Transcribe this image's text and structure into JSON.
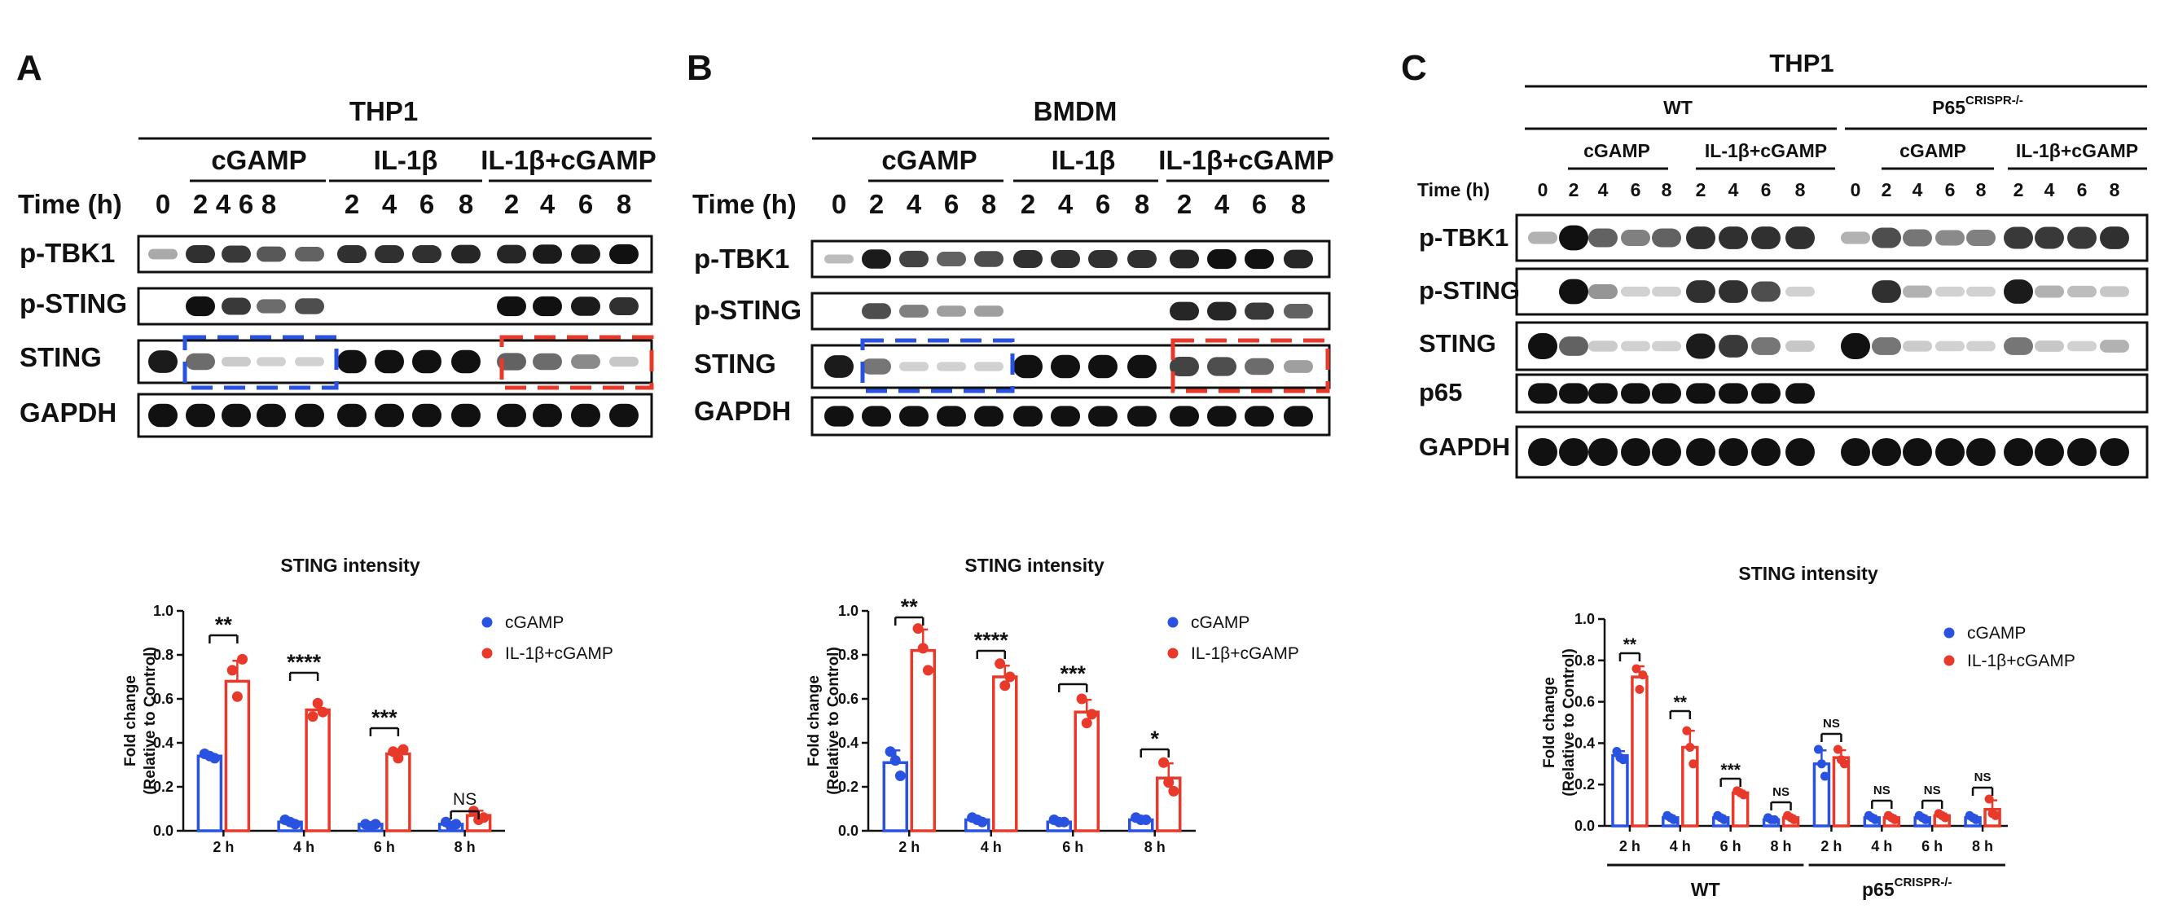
{
  "colors": {
    "cgamp": "#2a52e0",
    "il1b": "#e8392a",
    "ink": "#111111"
  },
  "panel_a": {
    "letter": "A",
    "cell": "THP1",
    "groups": [
      "cGAMP",
      "IL-1β",
      "IL-1β+cGAMP"
    ],
    "time_label": "Time (h)",
    "times": [
      "0",
      "2",
      "4",
      "6",
      "8",
      "2",
      "4",
      "6",
      "8",
      "2",
      "4",
      "6",
      "8"
    ],
    "rows": [
      "p-TBK1",
      "p-STING",
      "STING",
      "GAPDH"
    ]
  },
  "panel_b": {
    "letter": "B",
    "cell": "BMDM",
    "groups": [
      "cGAMP",
      "IL-1β",
      "IL-1β+cGAMP"
    ],
    "time_label": "Time (h)",
    "times": [
      "0",
      "2",
      "4",
      "6",
      "8",
      "2",
      "4",
      "6",
      "8",
      "2",
      "4",
      "6",
      "8"
    ],
    "rows": [
      "p-TBK1",
      "p-STING",
      "STING",
      "GAPDH"
    ]
  },
  "panel_c": {
    "letter": "C",
    "cell": "THP1",
    "genotypes": [
      "WT",
      "P65"
    ],
    "genotype_sup": "CRISPR-/-",
    "groups": [
      "cGAMP",
      "IL-1β+cGAMP",
      "cGAMP",
      "IL-1β+cGAMP"
    ],
    "time_label": "Time (h)",
    "times": [
      "0",
      "2",
      "4",
      "6",
      "8",
      "2",
      "4",
      "6",
      "8",
      "0",
      "2",
      "4",
      "6",
      "8",
      "2",
      "4",
      "6",
      "8"
    ],
    "rows": [
      "p-TBK1",
      "p-STING",
      "STING",
      "p65",
      "GAPDH"
    ]
  },
  "chart_data": [
    {
      "type": "bar",
      "title": "STING intensity",
      "ylabel": "Fold change\n(Relative to Control)",
      "ylim": [
        0,
        1.0
      ],
      "yticks": [
        "0.0",
        "0.2",
        "0.4",
        "0.6",
        "0.8",
        "1.0"
      ],
      "categories": [
        "2 h",
        "4 h",
        "6 h",
        "8 h"
      ],
      "series": [
        {
          "name": "cGAMP",
          "values": [
            0.34,
            0.04,
            0.03,
            0.03
          ],
          "points": [
            [
              0.35,
              0.34,
              0.33
            ],
            [
              0.05,
              0.04,
              0.03
            ],
            [
              0.03,
              0.02,
              0.03
            ],
            [
              0.04,
              0.02,
              0.03
            ]
          ]
        },
        {
          "name": "IL-1β+cGAMP",
          "values": [
            0.68,
            0.55,
            0.35,
            0.07
          ],
          "points": [
            [
              0.73,
              0.61,
              0.78
            ],
            [
              0.52,
              0.58,
              0.54
            ],
            [
              0.36,
              0.33,
              0.37
            ],
            [
              0.09,
              0.05,
              0.06
            ]
          ]
        }
      ],
      "significance": [
        "**",
        "****",
        "***",
        "NS"
      ],
      "legend": "top-right"
    },
    {
      "type": "bar",
      "title": "STING intensity",
      "ylabel": "Fold change\n(Relative to Control)",
      "ylim": [
        0,
        1.0
      ],
      "yticks": [
        "0.0",
        "0.2",
        "0.4",
        "0.6",
        "0.8",
        "1.0"
      ],
      "categories": [
        "2 h",
        "4 h",
        "6 h",
        "8 h"
      ],
      "series": [
        {
          "name": "cGAMP",
          "values": [
            0.31,
            0.05,
            0.04,
            0.05
          ],
          "points": [
            [
              0.36,
              0.32,
              0.25
            ],
            [
              0.06,
              0.05,
              0.04
            ],
            [
              0.05,
              0.04,
              0.04
            ],
            [
              0.06,
              0.05,
              0.05
            ]
          ]
        },
        {
          "name": "IL-1β+cGAMP",
          "values": [
            0.82,
            0.7,
            0.54,
            0.24
          ],
          "points": [
            [
              0.92,
              0.83,
              0.73
            ],
            [
              0.76,
              0.66,
              0.7
            ],
            [
              0.6,
              0.49,
              0.53
            ],
            [
              0.31,
              0.22,
              0.18
            ]
          ]
        }
      ],
      "significance": [
        "**",
        "****",
        "***",
        "*"
      ],
      "legend": "top-right"
    },
    {
      "type": "bar",
      "title": "STING intensity",
      "ylabel": "Fold change\n(Relative to Control)",
      "ylim": [
        0,
        1.0
      ],
      "yticks": [
        "0.0",
        "0.2",
        "0.4",
        "0.6",
        "0.8",
        "1.0"
      ],
      "categories": [
        "2 h",
        "4 h",
        "6 h",
        "8 h",
        "2 h",
        "4 h",
        "6 h",
        "8 h"
      ],
      "category_groups": [
        {
          "label": "WT",
          "count": 4
        },
        {
          "label": "p65",
          "sup": "CRISPR-/-",
          "count": 4
        }
      ],
      "series": [
        {
          "name": "cGAMP",
          "values": [
            0.34,
            0.04,
            0.04,
            0.03,
            0.3,
            0.04,
            0.04,
            0.04
          ],
          "points": [
            [
              0.36,
              0.33,
              0.32
            ],
            [
              0.05,
              0.04,
              0.03
            ],
            [
              0.05,
              0.04,
              0.03
            ],
            [
              0.04,
              0.03,
              0.03
            ],
            [
              0.37,
              0.3,
              0.24
            ],
            [
              0.05,
              0.04,
              0.03
            ],
            [
              0.05,
              0.04,
              0.03
            ],
            [
              0.05,
              0.04,
              0.03
            ]
          ]
        },
        {
          "name": "IL-1β+cGAMP",
          "values": [
            0.72,
            0.38,
            0.16,
            0.04,
            0.33,
            0.04,
            0.05,
            0.08
          ],
          "points": [
            [
              0.76,
              0.66,
              0.73
            ],
            [
              0.46,
              0.38,
              0.3
            ],
            [
              0.17,
              0.16,
              0.15
            ],
            [
              0.05,
              0.04,
              0.03
            ],
            [
              0.37,
              0.32,
              0.3
            ],
            [
              0.05,
              0.04,
              0.03
            ],
            [
              0.06,
              0.05,
              0.04
            ],
            [
              0.13,
              0.06,
              0.05
            ]
          ]
        }
      ],
      "significance": [
        "**",
        "**",
        "***",
        "NS",
        "NS",
        "NS",
        "NS",
        "NS"
      ],
      "legend": "top-right"
    }
  ]
}
